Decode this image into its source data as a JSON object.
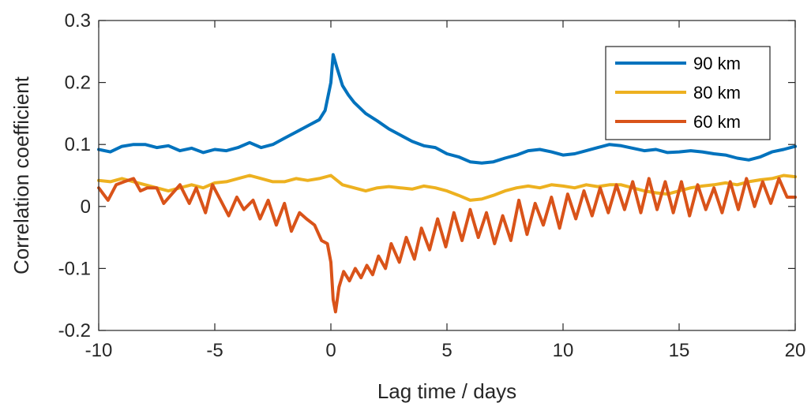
{
  "chart_data": {
    "type": "line",
    "xlabel": "Lag time / days",
    "ylabel": "Correlation coefficient",
    "xlim": [
      -10,
      20
    ],
    "ylim": [
      -0.2,
      0.3
    ],
    "x_ticks": [
      -10,
      -5,
      0,
      5,
      10,
      15,
      20
    ],
    "y_ticks": [
      -0.2,
      -0.1,
      0,
      0.1,
      0.2,
      0.3
    ],
    "x_tick_labels": [
      "-10",
      "-5",
      "0",
      "5",
      "10",
      "15",
      "20"
    ],
    "y_tick_labels": [
      "-0.2",
      "-0.1",
      "0",
      "0.1",
      "0.2",
      "0.3"
    ],
    "grid": false,
    "legend_position": "top-right",
    "series": [
      {
        "name": "90 km",
        "color": "#0072BD",
        "x": [
          -10,
          -9.5,
          -9,
          -8.5,
          -8,
          -7.5,
          -7,
          -6.5,
          -6,
          -5.5,
          -5,
          -4.5,
          -4,
          -3.5,
          -3,
          -2.5,
          -2,
          -1.5,
          -1,
          -0.5,
          -0.25,
          0,
          0.1,
          0.25,
          0.5,
          0.75,
          1,
          1.5,
          2,
          2.5,
          3,
          3.5,
          4,
          4.5,
          5,
          5.5,
          6,
          6.5,
          7,
          7.5,
          8,
          8.5,
          9,
          9.5,
          10,
          10.5,
          11,
          11.5,
          12,
          12.5,
          13,
          13.5,
          14,
          14.5,
          15,
          15.5,
          16,
          16.5,
          17,
          17.5,
          18,
          18.5,
          19,
          19.5,
          20
        ],
        "y": [
          0.092,
          0.088,
          0.097,
          0.1,
          0.1,
          0.095,
          0.098,
          0.09,
          0.094,
          0.087,
          0.092,
          0.09,
          0.095,
          0.103,
          0.095,
          0.1,
          0.11,
          0.12,
          0.13,
          0.14,
          0.155,
          0.2,
          0.245,
          0.225,
          0.195,
          0.18,
          0.168,
          0.15,
          0.138,
          0.125,
          0.115,
          0.105,
          0.098,
          0.095,
          0.085,
          0.08,
          0.072,
          0.07,
          0.072,
          0.078,
          0.083,
          0.09,
          0.092,
          0.088,
          0.083,
          0.085,
          0.09,
          0.095,
          0.1,
          0.098,
          0.094,
          0.09,
          0.092,
          0.087,
          0.088,
          0.09,
          0.088,
          0.085,
          0.083,
          0.078,
          0.075,
          0.08,
          0.088,
          0.092,
          0.097
        ]
      },
      {
        "name": "80 km",
        "color": "#EDB120",
        "x": [
          -10,
          -9.5,
          -9,
          -8.5,
          -8,
          -7.5,
          -7,
          -6.5,
          -6,
          -5.5,
          -5,
          -4.5,
          -4,
          -3.5,
          -3,
          -2.5,
          -2,
          -1.5,
          -1,
          -0.5,
          0,
          0.5,
          1,
          1.5,
          2,
          2.5,
          3,
          3.5,
          4,
          4.5,
          5,
          5.5,
          6,
          6.5,
          7,
          7.5,
          8,
          8.5,
          9,
          9.5,
          10,
          10.5,
          11,
          11.5,
          12,
          12.5,
          13,
          13.5,
          14,
          14.5,
          15,
          15.5,
          16,
          16.5,
          17,
          17.5,
          18,
          18.5,
          19,
          19.5,
          20
        ],
        "y": [
          0.042,
          0.04,
          0.045,
          0.04,
          0.035,
          0.03,
          0.025,
          0.03,
          0.035,
          0.03,
          0.038,
          0.04,
          0.045,
          0.05,
          0.045,
          0.04,
          0.04,
          0.045,
          0.042,
          0.045,
          0.05,
          0.035,
          0.03,
          0.025,
          0.03,
          0.032,
          0.03,
          0.028,
          0.033,
          0.03,
          0.025,
          0.018,
          0.01,
          0.012,
          0.018,
          0.025,
          0.03,
          0.033,
          0.03,
          0.035,
          0.033,
          0.03,
          0.035,
          0.032,
          0.035,
          0.035,
          0.03,
          0.025,
          0.022,
          0.02,
          0.025,
          0.03,
          0.033,
          0.035,
          0.038,
          0.035,
          0.04,
          0.043,
          0.045,
          0.05,
          0.048
        ]
      },
      {
        "name": "60 km",
        "color": "#D95319",
        "x": [
          -10,
          -9.6,
          -9.25,
          -8.9,
          -8.5,
          -8.2,
          -7.9,
          -7.5,
          -7.2,
          -6.85,
          -6.5,
          -6.1,
          -5.8,
          -5.4,
          -5.1,
          -4.75,
          -4.4,
          -4.05,
          -3.75,
          -3.35,
          -3.05,
          -2.7,
          -2.35,
          -2,
          -1.7,
          -1.35,
          -1.05,
          -0.7,
          -0.4,
          -0.15,
          0,
          0.1,
          0.2,
          0.35,
          0.55,
          0.8,
          1.05,
          1.3,
          1.55,
          1.8,
          2.05,
          2.35,
          2.6,
          2.95,
          3.25,
          3.6,
          3.9,
          4.25,
          4.6,
          4.95,
          5.3,
          5.65,
          6,
          6.35,
          6.7,
          7.05,
          7.4,
          7.75,
          8.1,
          8.45,
          8.8,
          9.15,
          9.5,
          9.85,
          10.2,
          10.55,
          10.9,
          11.25,
          11.6,
          11.95,
          12.3,
          12.65,
          13,
          13.35,
          13.7,
          14.05,
          14.4,
          14.75,
          15.1,
          15.45,
          15.8,
          16.15,
          16.5,
          16.85,
          17.2,
          17.55,
          17.9,
          18.25,
          18.6,
          18.95,
          19.3,
          19.65,
          20
        ],
        "y": [
          0.03,
          0.01,
          0.035,
          0.04,
          0.045,
          0.025,
          0.03,
          0.03,
          0.005,
          0.02,
          0.035,
          0.005,
          0.03,
          -0.01,
          0.035,
          0.01,
          -0.015,
          0.015,
          -0.005,
          0.01,
          -0.02,
          0.01,
          -0.03,
          0.005,
          -0.04,
          -0.01,
          -0.02,
          -0.03,
          -0.055,
          -0.06,
          -0.09,
          -0.15,
          -0.17,
          -0.13,
          -0.105,
          -0.12,
          -0.1,
          -0.115,
          -0.095,
          -0.11,
          -0.08,
          -0.1,
          -0.06,
          -0.09,
          -0.05,
          -0.085,
          -0.035,
          -0.07,
          -0.02,
          -0.065,
          -0.01,
          -0.055,
          -0.005,
          -0.05,
          -0.01,
          -0.06,
          -0.015,
          -0.055,
          0.01,
          -0.045,
          0.005,
          -0.03,
          0.015,
          -0.035,
          0.02,
          -0.02,
          0.025,
          -0.015,
          0.03,
          -0.01,
          0.035,
          -0.005,
          0.04,
          -0.01,
          0.045,
          -0.005,
          0.04,
          -0.01,
          0.04,
          -0.015,
          0.035,
          -0.005,
          0.03,
          -0.01,
          0.04,
          -0.005,
          0.045,
          0.0,
          0.04,
          0.005,
          0.045,
          0.015,
          0.015
        ]
      }
    ]
  }
}
